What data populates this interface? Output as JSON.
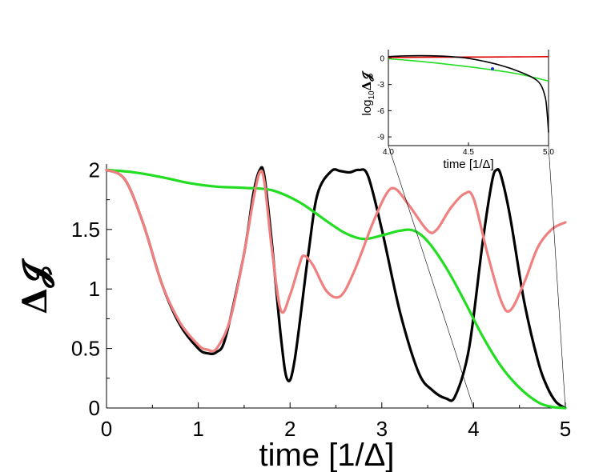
{
  "chart_data": [
    {
      "type": "line",
      "title": "",
      "xlabel": "time [1/Δ]",
      "ylabel": "Δ𝓙",
      "xlim": [
        0,
        5
      ],
      "ylim": [
        0,
        2.05
      ],
      "xticks": [
        0,
        1,
        2,
        3,
        4,
        5
      ],
      "xtick_labels": [
        "0",
        "1",
        "2",
        "3",
        "4",
        "5"
      ],
      "yticks": [
        0,
        0.5,
        1,
        1.5,
        2
      ],
      "ytick_labels": [
        "0",
        "0.5",
        "1",
        "1.5",
        "2"
      ],
      "grid": false,
      "series": [
        {
          "name": "black",
          "color": "#000000",
          "x": [
            0,
            0.2,
            0.4,
            0.6,
            0.8,
            1.0,
            1.1,
            1.2,
            1.3,
            1.5,
            1.6,
            1.67,
            1.72,
            1.8,
            1.9,
            1.97,
            2.05,
            2.2,
            2.3,
            2.45,
            2.55,
            2.65,
            2.75,
            2.85,
            3.0,
            3.2,
            3.4,
            3.55,
            3.7,
            3.8,
            3.95,
            4.1,
            4.2,
            4.25,
            4.3,
            4.4,
            4.55,
            4.7,
            4.8,
            4.9,
            5.0
          ],
          "y": [
            2.0,
            1.92,
            1.55,
            1.05,
            0.7,
            0.5,
            0.46,
            0.47,
            0.6,
            1.3,
            1.8,
            2.0,
            1.95,
            1.4,
            0.6,
            0.24,
            0.4,
            1.3,
            1.8,
            1.99,
            1.99,
            1.98,
            2.0,
            1.95,
            1.5,
            0.8,
            0.3,
            0.15,
            0.08,
            0.1,
            0.5,
            1.4,
            1.9,
            2.0,
            1.95,
            1.6,
            0.9,
            0.4,
            0.18,
            0.05,
            0.0
          ]
        },
        {
          "name": "pink",
          "color": "#f08080",
          "x": [
            0,
            0.2,
            0.4,
            0.6,
            0.8,
            1.0,
            1.1,
            1.2,
            1.35,
            1.5,
            1.6,
            1.67,
            1.72,
            1.8,
            1.9,
            2.0,
            2.1,
            2.15,
            2.25,
            2.4,
            2.55,
            2.7,
            2.9,
            3.05,
            3.15,
            3.3,
            3.5,
            3.6,
            3.75,
            3.9,
            4.0,
            4.15,
            4.3,
            4.4,
            4.55,
            4.7,
            4.85,
            5.0
          ],
          "y": [
            2.0,
            1.92,
            1.55,
            1.05,
            0.72,
            0.53,
            0.49,
            0.5,
            0.75,
            1.3,
            1.75,
            1.98,
            1.9,
            1.35,
            0.82,
            0.95,
            1.2,
            1.28,
            1.2,
            0.98,
            0.94,
            1.15,
            1.55,
            1.8,
            1.84,
            1.7,
            1.49,
            1.5,
            1.68,
            1.8,
            1.76,
            1.3,
            0.9,
            0.82,
            1.05,
            1.35,
            1.5,
            1.56
          ]
        },
        {
          "name": "green",
          "color": "#22dd22",
          "x": [
            0,
            0.3,
            0.6,
            0.9,
            1.2,
            1.5,
            1.8,
            2.1,
            2.4,
            2.6,
            2.8,
            3.0,
            3.2,
            3.35,
            3.5,
            3.7,
            3.9,
            4.1,
            4.3,
            4.5,
            4.7,
            4.85,
            5.0
          ],
          "y": [
            2.0,
            1.98,
            1.94,
            1.89,
            1.86,
            1.85,
            1.83,
            1.73,
            1.57,
            1.47,
            1.42,
            1.45,
            1.49,
            1.49,
            1.4,
            1.18,
            0.9,
            0.6,
            0.35,
            0.17,
            0.05,
            0.01,
            0.0
          ]
        }
      ]
    },
    {
      "type": "line",
      "title": "",
      "xlabel": "time [1/Δ]",
      "ylabel": "log₁₀Δ𝓙",
      "ylabel_prefix": "log",
      "ylabel_sub": "10",
      "ylabel_symbol": "Δ𝓙",
      "xlim": [
        4.0,
        5.0
      ],
      "ylim": [
        -10,
        1
      ],
      "xticks": [
        4.0,
        4.5,
        5.0
      ],
      "xtick_labels": [
        "4.0",
        "4.5",
        "5.0"
      ],
      "yticks": [
        0,
        -3,
        -6,
        -9
      ],
      "ytick_labels": [
        "0",
        "-3",
        "-6",
        "-9"
      ],
      "grid": false,
      "series": [
        {
          "name": "black",
          "color": "#000000",
          "x": [
            4.0,
            4.1,
            4.2,
            4.3,
            4.4,
            4.5,
            4.6,
            4.7,
            4.8,
            4.9,
            4.95,
            4.98,
            4.99,
            5.0
          ],
          "y": [
            0.2,
            0.28,
            0.3,
            0.28,
            0.18,
            0.0,
            -0.35,
            -0.8,
            -1.4,
            -2.2,
            -3.0,
            -4.5,
            -6.0,
            -8.5
          ]
        },
        {
          "name": "red",
          "color": "#dd0000",
          "x": [
            4.0,
            4.2,
            4.4,
            4.6,
            4.8,
            5.0
          ],
          "y": [
            0.1,
            0.12,
            0.14,
            0.15,
            0.17,
            0.19
          ]
        },
        {
          "name": "green",
          "color": "#22dd22",
          "x": [
            4.0,
            4.2,
            4.4,
            4.6,
            4.8,
            5.0
          ],
          "y": [
            -0.05,
            -0.35,
            -0.75,
            -1.2,
            -1.75,
            -2.6
          ]
        }
      ],
      "marker": {
        "x": 4.65,
        "y": -1.2,
        "color": "#2233cc"
      }
    }
  ]
}
